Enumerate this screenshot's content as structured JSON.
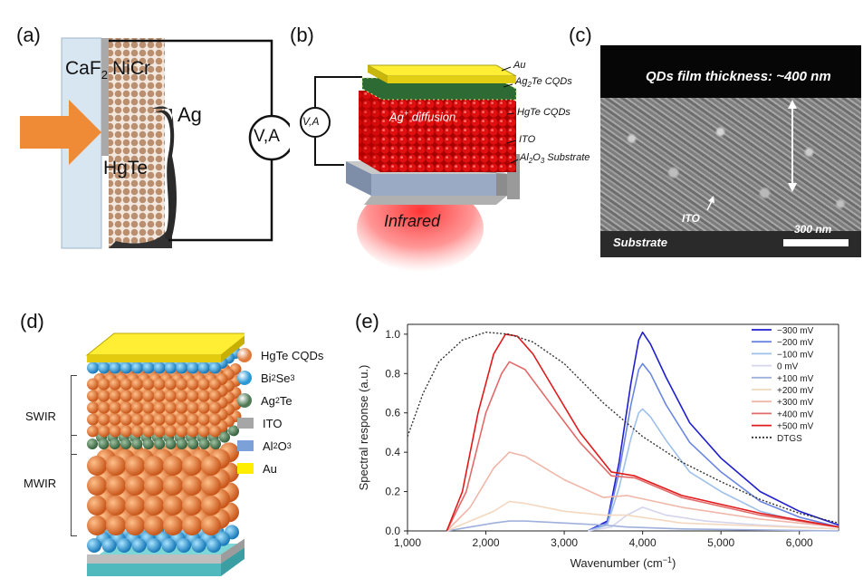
{
  "panel_a": {
    "label": "(a)",
    "window": "CaF",
    "window_sub": "2",
    "electrode": "NiCr",
    "material": "HgTe",
    "contact": "Ag",
    "meter": "V,A"
  },
  "panel_b": {
    "label": "(b)",
    "meter": "V,A",
    "layers": [
      "Au",
      "Ag",
      "2",
      "Te CQDs",
      "HgTe CQDs",
      "ITO",
      "Al",
      "2",
      "O",
      "3",
      " Substrate"
    ],
    "diffusion": "Ag",
    "diffusion_sup": "+",
    "diffusion_rest": " diffusion",
    "infrared": "Infrared"
  },
  "panel_c": {
    "label": "(c)",
    "title": "QDs film thickness: ~400 nm",
    "ito": "ITO",
    "substrate": "Substrate",
    "scalebar": "300 nm"
  },
  "panel_d": {
    "label": "(d)",
    "swir": "SWIR",
    "mwir": "MWIR",
    "legend": [
      {
        "text": "HgTe CQDs",
        "sub": "",
        "rest": "",
        "color": "#e07a3c",
        "shape": "ball"
      },
      {
        "text": "Bi",
        "sub": "2",
        "rest": "Se3",
        "color": "#2a9ad6",
        "shape": "ball"
      },
      {
        "text": "Ag",
        "sub": "2",
        "rest": "Te",
        "color": "#4f7a56",
        "shape": "ball"
      },
      {
        "text": "ITO",
        "sub": "",
        "rest": "",
        "color": "#a6a6a6",
        "shape": "rect"
      },
      {
        "text": "Al",
        "sub": "2",
        "rest": "O3",
        "color": "#7ca1d8",
        "shape": "rect"
      },
      {
        "text": "Au",
        "sub": "",
        "rest": "",
        "color": "#ffee00",
        "shape": "rect"
      }
    ]
  },
  "panel_e": {
    "label": "(e)",
    "ylabel": "Spectral response (a.u.)",
    "xlabel": "Wavenumber (cm",
    "xlabel_sup": "−1",
    "xlabel_end": ")",
    "xticks": [
      "1,000",
      "2,000",
      "3,000",
      "4,000",
      "5,000",
      "6,000"
    ],
    "yticks": [
      "0.0",
      "0.2",
      "0.4",
      "0.6",
      "0.8",
      "1.0"
    ]
  },
  "chart_data": {
    "type": "line",
    "xlabel": "Wavenumber (cm−1)",
    "ylabel": "Spectral response (a.u.)",
    "xlim": [
      1000,
      6500
    ],
    "ylim": [
      0,
      1.05
    ],
    "legend_position": "top-right",
    "series": [
      {
        "name": "−300 mV",
        "color": "#1f1fcf",
        "points": [
          [
            3300,
            0
          ],
          [
            3550,
            0.05
          ],
          [
            3700,
            0.35
          ],
          [
            3850,
            0.75
          ],
          [
            3950,
            0.97
          ],
          [
            4000,
            1.01
          ],
          [
            4100,
            0.95
          ],
          [
            4300,
            0.78
          ],
          [
            4600,
            0.55
          ],
          [
            5000,
            0.37
          ],
          [
            5500,
            0.2
          ],
          [
            6000,
            0.1
          ],
          [
            6500,
            0.03
          ]
        ]
      },
      {
        "name": "−200 mV",
        "color": "#6a86e0",
        "points": [
          [
            3300,
            0
          ],
          [
            3550,
            0.04
          ],
          [
            3700,
            0.3
          ],
          [
            3850,
            0.64
          ],
          [
            3950,
            0.82
          ],
          [
            4000,
            0.85
          ],
          [
            4100,
            0.8
          ],
          [
            4300,
            0.64
          ],
          [
            4600,
            0.45
          ],
          [
            5000,
            0.3
          ],
          [
            5500,
            0.15
          ],
          [
            6000,
            0.07
          ],
          [
            6500,
            0.02
          ]
        ]
      },
      {
        "name": "−100 mV",
        "color": "#9ec0ea",
        "points": [
          [
            3300,
            0
          ],
          [
            3550,
            0.03
          ],
          [
            3700,
            0.22
          ],
          [
            3850,
            0.47
          ],
          [
            3950,
            0.6
          ],
          [
            4000,
            0.62
          ],
          [
            4100,
            0.58
          ],
          [
            4300,
            0.46
          ],
          [
            4600,
            0.3
          ],
          [
            5000,
            0.2
          ],
          [
            5500,
            0.1
          ],
          [
            6000,
            0.05
          ],
          [
            6500,
            0.02
          ]
        ]
      },
      {
        "name": "0 mV",
        "color": "#d4d4ec",
        "points": [
          [
            3300,
            0
          ],
          [
            3600,
            0.02
          ],
          [
            3800,
            0.08
          ],
          [
            4000,
            0.12
          ],
          [
            4300,
            0.08
          ],
          [
            4800,
            0.05
          ],
          [
            5500,
            0.03
          ],
          [
            6500,
            0.01
          ]
        ]
      },
      {
        "name": "+100 mV",
        "color": "#9fb0dc",
        "points": [
          [
            1500,
            0
          ],
          [
            1800,
            0.02
          ],
          [
            2100,
            0.04
          ],
          [
            2300,
            0.05
          ],
          [
            2500,
            0.05
          ],
          [
            3000,
            0.04
          ],
          [
            3500,
            0.03
          ],
          [
            3800,
            0.02
          ],
          [
            4500,
            0.01
          ],
          [
            6500,
            0
          ]
        ]
      },
      {
        "name": "+200 mV",
        "color": "#f3d8bf",
        "points": [
          [
            1500,
            0
          ],
          [
            1800,
            0.05
          ],
          [
            2100,
            0.1
          ],
          [
            2300,
            0.15
          ],
          [
            2500,
            0.14
          ],
          [
            3000,
            0.1
          ],
          [
            3500,
            0.08
          ],
          [
            3800,
            0.08
          ],
          [
            4500,
            0.04
          ],
          [
            6500,
            0.01
          ]
        ]
      },
      {
        "name": "+300 mV",
        "color": "#f0b6a8",
        "points": [
          [
            1500,
            0
          ],
          [
            1800,
            0.12
          ],
          [
            2100,
            0.32
          ],
          [
            2300,
            0.4
          ],
          [
            2500,
            0.38
          ],
          [
            3000,
            0.26
          ],
          [
            3500,
            0.17
          ],
          [
            3800,
            0.18
          ],
          [
            4500,
            0.12
          ],
          [
            5500,
            0.06
          ],
          [
            6500,
            0.02
          ]
        ]
      },
      {
        "name": "+400 mV",
        "color": "#e36a6a",
        "points": [
          [
            1500,
            0
          ],
          [
            1750,
            0.2
          ],
          [
            2000,
            0.6
          ],
          [
            2200,
            0.8
          ],
          [
            2300,
            0.86
          ],
          [
            2500,
            0.82
          ],
          [
            2800,
            0.66
          ],
          [
            3200,
            0.45
          ],
          [
            3600,
            0.28
          ],
          [
            3900,
            0.27
          ],
          [
            4500,
            0.17
          ],
          [
            5500,
            0.08
          ],
          [
            6500,
            0.02
          ]
        ]
      },
      {
        "name": "+500 mV",
        "color": "#e01b1b",
        "points": [
          [
            1500,
            0
          ],
          [
            1700,
            0.2
          ],
          [
            1900,
            0.6
          ],
          [
            2100,
            0.9
          ],
          [
            2250,
            1.0
          ],
          [
            2400,
            0.99
          ],
          [
            2600,
            0.9
          ],
          [
            2900,
            0.7
          ],
          [
            3200,
            0.5
          ],
          [
            3600,
            0.3
          ],
          [
            3900,
            0.28
          ],
          [
            4500,
            0.18
          ],
          [
            5500,
            0.09
          ],
          [
            6500,
            0.02
          ]
        ]
      },
      {
        "name": "DTGS",
        "color": "#333333",
        "dashed": true,
        "points": [
          [
            1000,
            0.48
          ],
          [
            1200,
            0.7
          ],
          [
            1400,
            0.86
          ],
          [
            1700,
            0.97
          ],
          [
            2000,
            1.01
          ],
          [
            2300,
            1.0
          ],
          [
            2600,
            0.96
          ],
          [
            3000,
            0.85
          ],
          [
            3500,
            0.65
          ],
          [
            4000,
            0.48
          ],
          [
            4500,
            0.35
          ],
          [
            5000,
            0.25
          ],
          [
            5500,
            0.16
          ],
          [
            6000,
            0.09
          ],
          [
            6500,
            0.04
          ]
        ]
      }
    ]
  }
}
